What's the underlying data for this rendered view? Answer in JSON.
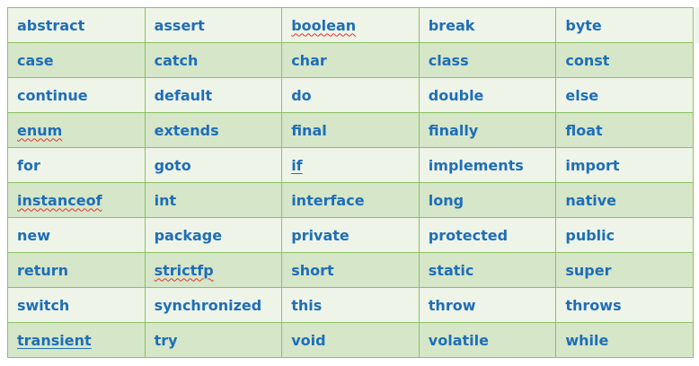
{
  "keywords_table": {
    "rows": [
      [
        {
          "text": "abstract"
        },
        {
          "text": "assert"
        },
        {
          "text": "boolean",
          "mark": "spell"
        },
        {
          "text": "break"
        },
        {
          "text": "byte"
        }
      ],
      [
        {
          "text": "case"
        },
        {
          "text": "catch"
        },
        {
          "text": "char"
        },
        {
          "text": "class"
        },
        {
          "text": "const"
        }
      ],
      [
        {
          "text": "continue"
        },
        {
          "text": "default"
        },
        {
          "text": "do"
        },
        {
          "text": "double"
        },
        {
          "text": "else"
        }
      ],
      [
        {
          "text": "enum",
          "mark": "spell"
        },
        {
          "text": "extends"
        },
        {
          "text": "final"
        },
        {
          "text": "finally"
        },
        {
          "text": "float"
        }
      ],
      [
        {
          "text": "for"
        },
        {
          "text": "goto"
        },
        {
          "text": "if",
          "mark": "link"
        },
        {
          "text": "implements"
        },
        {
          "text": "import"
        }
      ],
      [
        {
          "text": "instanceof",
          "mark": "spell"
        },
        {
          "text": "int"
        },
        {
          "text": "interface"
        },
        {
          "text": "long"
        },
        {
          "text": "native"
        }
      ],
      [
        {
          "text": "new"
        },
        {
          "text": "package"
        },
        {
          "text": "private"
        },
        {
          "text": "protected"
        },
        {
          "text": "public"
        }
      ],
      [
        {
          "text": "return"
        },
        {
          "text": "strictfp",
          "mark": "spell"
        },
        {
          "text": "short"
        },
        {
          "text": "static"
        },
        {
          "text": "super"
        }
      ],
      [
        {
          "text": "switch"
        },
        {
          "text": "synchronized"
        },
        {
          "text": "this"
        },
        {
          "text": "throw"
        },
        {
          "text": "throws"
        }
      ],
      [
        {
          "text": "transient",
          "mark": "link"
        },
        {
          "text": "try"
        },
        {
          "text": "void"
        },
        {
          "text": "volatile"
        },
        {
          "text": "while"
        }
      ]
    ]
  },
  "colors": {
    "text": "#1e6eb8",
    "border": "#8dc063",
    "row_light": "#eef4e8",
    "row_dark": "#d6e6c9",
    "spellcheck_underline": "#e03030"
  }
}
